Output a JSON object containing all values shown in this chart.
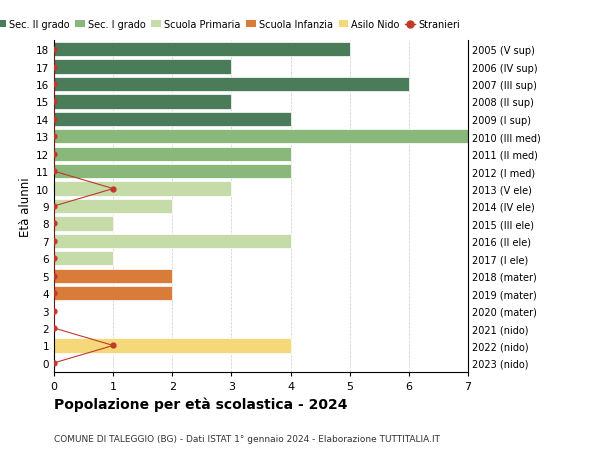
{
  "ages": [
    18,
    17,
    16,
    15,
    14,
    13,
    12,
    11,
    10,
    9,
    8,
    7,
    6,
    5,
    4,
    3,
    2,
    1,
    0
  ],
  "year_labels": [
    "2005 (V sup)",
    "2006 (IV sup)",
    "2007 (III sup)",
    "2008 (II sup)",
    "2009 (I sup)",
    "2010 (III med)",
    "2011 (II med)",
    "2012 (I med)",
    "2013 (V ele)",
    "2014 (IV ele)",
    "2015 (III ele)",
    "2016 (II ele)",
    "2017 (I ele)",
    "2018 (mater)",
    "2019 (mater)",
    "2020 (mater)",
    "2021 (nido)",
    "2022 (nido)",
    "2023 (nido)"
  ],
  "bar_values": [
    5,
    3,
    6,
    3,
    4,
    7,
    4,
    4,
    3,
    2,
    1,
    4,
    1,
    2,
    2,
    0,
    0,
    4,
    0
  ],
  "bar_colors": [
    "#4a7c59",
    "#4a7c59",
    "#4a7c59",
    "#4a7c59",
    "#4a7c59",
    "#8ab87a",
    "#8ab87a",
    "#8ab87a",
    "#c5dba8",
    "#c5dba8",
    "#c5dba8",
    "#c5dba8",
    "#c5dba8",
    "#d97c3a",
    "#d97c3a",
    "#d97c3a",
    "#f5d87a",
    "#f5d87a",
    "#f5d87a"
  ],
  "stranieri_values": [
    0,
    0,
    0,
    0,
    0,
    0,
    0,
    0,
    1,
    0,
    0,
    0,
    0,
    0,
    0,
    0,
    0,
    1,
    0
  ],
  "stranieri_ages": [
    18,
    17,
    16,
    15,
    14,
    13,
    12,
    11,
    10,
    9,
    8,
    7,
    6,
    5,
    4,
    3,
    2,
    1,
    0
  ],
  "legend_labels": [
    "Sec. II grado",
    "Sec. I grado",
    "Scuola Primaria",
    "Scuola Infanzia",
    "Asilo Nido",
    "Stranieri"
  ],
  "legend_colors": [
    "#4a7c59",
    "#8ab87a",
    "#c5dba8",
    "#d97c3a",
    "#f5d87a",
    "#c0392b"
  ],
  "ylabel_left": "Età alunni",
  "title": "Popolazione per età scolastica - 2024",
  "subtitle": "COMUNE DI TALEGGIO (BG) - Dati ISTAT 1° gennaio 2024 - Elaborazione TUTTITALIA.IT",
  "xlim": [
    0,
    7
  ],
  "ylim": [
    -0.5,
    18.5
  ],
  "bar_height": 0.82,
  "stranieri_line_color": "#c0392b",
  "stranieri_dot_color": "#c0392b",
  "bg_color": "#ffffff"
}
